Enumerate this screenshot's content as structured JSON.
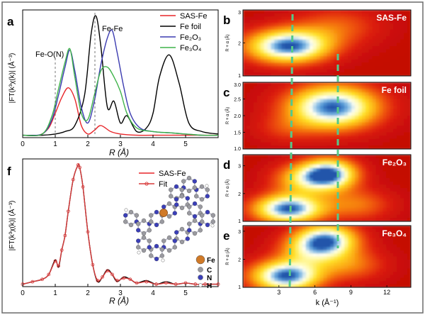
{
  "colors": {
    "sas": "#e8262a",
    "foil": "#000000",
    "fe2o3": "#3b3bb0",
    "fe3o4": "#3fb34a",
    "fit": "#d83a3a",
    "guide": "#55c98a"
  },
  "panels": {
    "a": {
      "letter": "a",
      "ylabel": "|FT(k³χ(k)| (Å⁻³)",
      "xlabel": "R (Å)",
      "annotations": {
        "feo": "Fe-O(N)",
        "fefe": "Fe-Fe"
      },
      "xticks": [
        "0",
        "1",
        "2",
        "3",
        "4",
        "5"
      ],
      "legend": [
        {
          "key": "sas",
          "label": "SAS-Fe"
        },
        {
          "key": "foil",
          "label": "Fe foil"
        },
        {
          "key": "fe2o3",
          "label": "Fe₂O₃"
        },
        {
          "key": "fe3o4",
          "label": "Fe₃O₄"
        }
      ]
    },
    "f": {
      "letter": "f",
      "ylabel": "|FT(k³χ(k)| (Å⁻³)",
      "xlabel": "R (Å)",
      "xticks": [
        "0",
        "1",
        "2",
        "3",
        "4",
        "5"
      ],
      "legend": [
        {
          "key": "sas",
          "label": "SAS-Fe"
        },
        {
          "key": "fit",
          "label": "Fit"
        }
      ],
      "atoms": [
        {
          "key": "fe",
          "label": "Fe"
        },
        {
          "key": "c",
          "label": "C"
        },
        {
          "key": "n",
          "label": "N"
        },
        {
          "key": "h",
          "label": "H"
        }
      ]
    },
    "wavelets": [
      {
        "letter": "b",
        "title": "SAS-Fe",
        "yticks": [
          "1",
          "2",
          "3"
        ],
        "ylabel": "R + α (Å)"
      },
      {
        "letter": "c",
        "title": "Fe foil",
        "yticks": [
          "1.0",
          "1.5",
          "2.0",
          "2.5",
          "3.0"
        ],
        "ylabel": "R + α (Å)"
      },
      {
        "letter": "d",
        "title": "Fe₂O₃",
        "yticks": [
          "1",
          "2",
          "3"
        ],
        "ylabel": "R + α (Å)"
      },
      {
        "letter": "e",
        "title": "Fe₃O₄",
        "yticks": [
          "1",
          "2",
          "3"
        ],
        "ylabel": "R + α (Å)"
      }
    ],
    "wavelet_xticks": [
      "3",
      "6",
      "9",
      "12"
    ],
    "wavelet_xlabel": "k (Å⁻¹)"
  },
  "chart_data": [
    {
      "type": "line",
      "panel": "a",
      "xlabel": "R (Å)",
      "ylabel": "|FT(k³χ(k)| (Å⁻³)",
      "xlim": [
        0,
        6
      ],
      "ylim": [
        0,
        1.05
      ],
      "series": [
        {
          "name": "SAS-Fe",
          "color_key": "sas",
          "x": [
            0,
            0.5,
            0.8,
            1.0,
            1.2,
            1.4,
            1.6,
            1.8,
            2.0,
            2.2,
            2.4,
            2.7,
            3.0,
            3.5,
            4.0,
            5.0,
            6.0
          ],
          "y": [
            0.02,
            0.02,
            0.08,
            0.2,
            0.33,
            0.41,
            0.32,
            0.1,
            0.03,
            0.06,
            0.1,
            0.05,
            0.03,
            0.02,
            0.02,
            0.02,
            0.02
          ]
        },
        {
          "name": "Fe foil",
          "color_key": "foil",
          "x": [
            0,
            0.6,
            1.0,
            1.3,
            1.6,
            1.9,
            2.1,
            2.25,
            2.4,
            2.6,
            2.8,
            3.0,
            3.2,
            3.5,
            3.8,
            4.0,
            4.2,
            4.5,
            4.8,
            5.1,
            5.5,
            6.0
          ],
          "y": [
            0.02,
            0.02,
            0.03,
            0.05,
            0.1,
            0.35,
            0.85,
            1.0,
            0.75,
            0.25,
            0.3,
            0.12,
            0.18,
            0.05,
            0.08,
            0.2,
            0.5,
            0.68,
            0.45,
            0.12,
            0.05,
            0.03
          ]
        },
        {
          "name": "Fe₂O₃",
          "color_key": "fe2o3",
          "x": [
            0,
            0.6,
            0.9,
            1.1,
            1.3,
            1.45,
            1.6,
            1.8,
            2.0,
            2.2,
            2.4,
            2.6,
            2.75,
            2.9,
            3.1,
            3.3,
            3.6,
            4.0,
            4.5,
            5.0,
            5.5,
            6.0
          ],
          "y": [
            0.02,
            0.03,
            0.15,
            0.35,
            0.58,
            0.72,
            0.55,
            0.25,
            0.12,
            0.3,
            0.6,
            0.82,
            0.88,
            0.7,
            0.42,
            0.2,
            0.08,
            0.05,
            0.04,
            0.03,
            0.02,
            0.02
          ]
        },
        {
          "name": "Fe₃O₄",
          "color_key": "fe3o4",
          "x": [
            0,
            0.6,
            0.9,
            1.1,
            1.3,
            1.45,
            1.6,
            1.8,
            2.0,
            2.2,
            2.4,
            2.6,
            2.8,
            3.0,
            3.2,
            3.5,
            4.0,
            4.5,
            5.0,
            5.5,
            6.0
          ],
          "y": [
            0.02,
            0.03,
            0.18,
            0.4,
            0.62,
            0.73,
            0.5,
            0.2,
            0.15,
            0.35,
            0.55,
            0.58,
            0.5,
            0.38,
            0.2,
            0.08,
            0.05,
            0.04,
            0.03,
            0.02,
            0.02
          ]
        }
      ]
    },
    {
      "type": "line",
      "panel": "f",
      "xlabel": "R (Å)",
      "ylabel": "|FT(k³χ(k)| (Å⁻³)",
      "xlim": [
        0,
        6
      ],
      "ylim": [
        0,
        1.05
      ],
      "series": [
        {
          "name": "SAS-Fe",
          "color_key": "foil",
          "x": [
            0,
            0.3,
            0.6,
            0.8,
            1.0,
            1.1,
            1.2,
            1.3,
            1.4,
            1.55,
            1.7,
            1.75,
            1.85,
            2.0,
            2.15,
            2.3,
            2.45,
            2.6,
            2.75,
            2.9,
            3.1,
            3.3,
            3.5,
            3.8,
            4.1,
            4.4,
            4.7,
            5.0,
            5.3,
            5.6,
            6.0
          ],
          "y": [
            0.02,
            0.04,
            0.06,
            0.1,
            0.22,
            0.16,
            0.3,
            0.42,
            0.62,
            0.88,
            1.0,
            0.98,
            0.82,
            0.45,
            0.18,
            0.04,
            0.08,
            0.14,
            0.1,
            0.04,
            0.08,
            0.06,
            0.03,
            0.05,
            0.02,
            0.04,
            0.02,
            0.03,
            0.02,
            0.02,
            0.02
          ]
        },
        {
          "name": "Fit",
          "color_key": "fit",
          "x": [
            0,
            0.3,
            0.6,
            0.8,
            1.0,
            1.1,
            1.2,
            1.3,
            1.4,
            1.55,
            1.7,
            1.75,
            1.85,
            2.0,
            2.15,
            2.3,
            2.45,
            2.6,
            2.75,
            2.9,
            3.1,
            3.3,
            3.5,
            3.8,
            4.1,
            4.4,
            4.7,
            5.0,
            5.3,
            5.6,
            6.0
          ],
          "y": [
            0.02,
            0.04,
            0.06,
            0.1,
            0.21,
            0.17,
            0.3,
            0.42,
            0.62,
            0.88,
            1.0,
            0.98,
            0.82,
            0.45,
            0.18,
            0.05,
            0.08,
            0.13,
            0.1,
            0.05,
            0.07,
            0.06,
            0.03,
            0.04,
            0.02,
            0.03,
            0.02,
            0.03,
            0.02,
            0.02,
            0.02
          ]
        }
      ]
    },
    {
      "type": "heatmap",
      "panel": "b",
      "title": "SAS-Fe",
      "xlim": [
        0,
        14
      ],
      "ylim": [
        1,
        3
      ],
      "peaks": [
        {
          "k": 3.8,
          "r": 1.9,
          "amp": 1.0,
          "sk": 2.4,
          "sr": 0.35
        },
        {
          "k": 7.8,
          "r": 2.5,
          "amp": 0.25,
          "sk": 2.5,
          "sr": 0.4
        }
      ]
    },
    {
      "type": "heatmap",
      "panel": "c",
      "title": "Fe foil",
      "xlim": [
        0,
        14
      ],
      "ylim": [
        1,
        3
      ],
      "peaks": [
        {
          "k": 7.5,
          "r": 2.25,
          "amp": 1.0,
          "sk": 2.6,
          "sr": 0.45
        },
        {
          "k": 3.5,
          "r": 1.6,
          "amp": 0.15,
          "sk": 1.8,
          "sr": 0.3
        }
      ]
    },
    {
      "type": "heatmap",
      "panel": "d",
      "title": "Fe₂O₃",
      "xlim": [
        0,
        14
      ],
      "ylim": [
        1,
        3.4
      ],
      "peaks": [
        {
          "k": 3.8,
          "r": 1.45,
          "amp": 1.0,
          "sk": 2.0,
          "sr": 0.35
        },
        {
          "k": 7.2,
          "r": 2.7,
          "amp": 0.95,
          "sk": 1.6,
          "sr": 0.38
        },
        {
          "k": 5.0,
          "r": 2.5,
          "amp": 0.45,
          "sk": 1.8,
          "sr": 0.4
        },
        {
          "k": 9.5,
          "r": 1.6,
          "amp": 0.3,
          "sk": 2.0,
          "sr": 0.4
        }
      ]
    },
    {
      "type": "heatmap",
      "panel": "e",
      "title": "Fe₃O₄",
      "xlim": [
        0,
        14
      ],
      "ylim": [
        1,
        3.2
      ],
      "peaks": [
        {
          "k": 3.6,
          "r": 1.4,
          "amp": 1.0,
          "sk": 2.0,
          "sr": 0.38
        },
        {
          "k": 7.0,
          "r": 2.7,
          "amp": 0.85,
          "sk": 1.8,
          "sr": 0.4
        },
        {
          "k": 5.5,
          "r": 2.3,
          "amp": 0.4,
          "sk": 1.8,
          "sr": 0.4
        },
        {
          "k": 9.0,
          "r": 1.8,
          "amp": 0.3,
          "sk": 2.0,
          "sr": 0.4
        }
      ]
    }
  ]
}
